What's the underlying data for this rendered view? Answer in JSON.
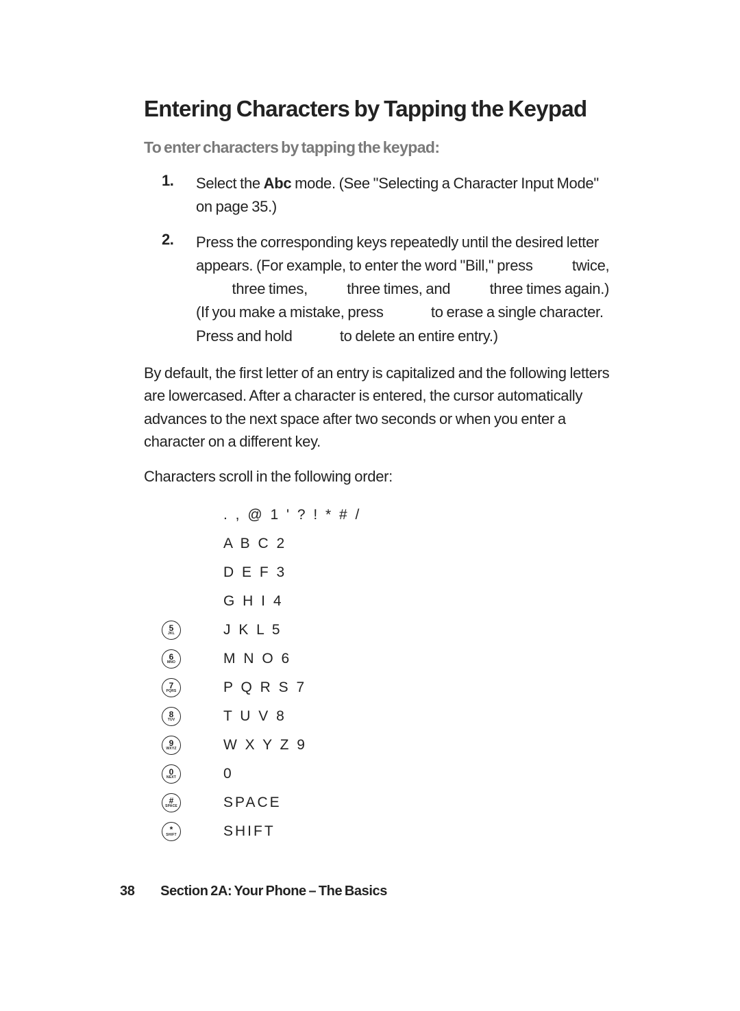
{
  "heading": "Entering Characters by Tapping the Keypad",
  "subheading": "To enter characters by tapping the keypad:",
  "steps": [
    {
      "num": "1.",
      "html": "Select the <b>Abc</b> mode. (See \"Selecting a Character Input Mode\" on page 35.)"
    },
    {
      "num": "2.",
      "html": "Press the corresponding keys repeatedly until the desired letter appears. (For example, to enter the word \"Bill,\" press      twice,      three times,      three times, and      three times again.) (If you make a mistake, press       to erase a single character. Press and hold       to delete an entire entry.)"
    }
  ],
  "para1": "By default, the first letter of an entry is capitalized and the following letters are lowercased. After a character is entered, the cursor automatically advances to the next space after two seconds or when you enter a character on a different key.",
  "para2": "Characters scroll in the following order:",
  "rows": [
    {
      "key_big": "",
      "key_small": "",
      "chars": ". , @ 1 ' ? ! * # /"
    },
    {
      "key_big": "",
      "key_small": "",
      "chars": "A B C 2"
    },
    {
      "key_big": "",
      "key_small": "",
      "chars": "D E F 3"
    },
    {
      "key_big": "",
      "key_small": "",
      "chars": "G H I 4"
    },
    {
      "key_big": "5",
      "key_small": "JKL",
      "chars": "J K L 5"
    },
    {
      "key_big": "6",
      "key_small": "MNO",
      "chars": "M N O 6"
    },
    {
      "key_big": "7",
      "key_small": "PQRS",
      "chars": "P Q R S 7"
    },
    {
      "key_big": "8",
      "key_small": "TUV",
      "chars": "T U V 8"
    },
    {
      "key_big": "9",
      "key_small": "WXYZ",
      "chars": "W X Y Z 9"
    },
    {
      "key_big": "0",
      "key_small": "NEXT",
      "chars": "0"
    },
    {
      "key_big": "#",
      "key_small": "SPACE",
      "chars": "SPACE"
    },
    {
      "key_big": "*",
      "key_small": "SHIFT",
      "chars": "SHIFT"
    }
  ],
  "footer_page": "38",
  "footer_text": "Section 2A: Your Phone – The Basics"
}
